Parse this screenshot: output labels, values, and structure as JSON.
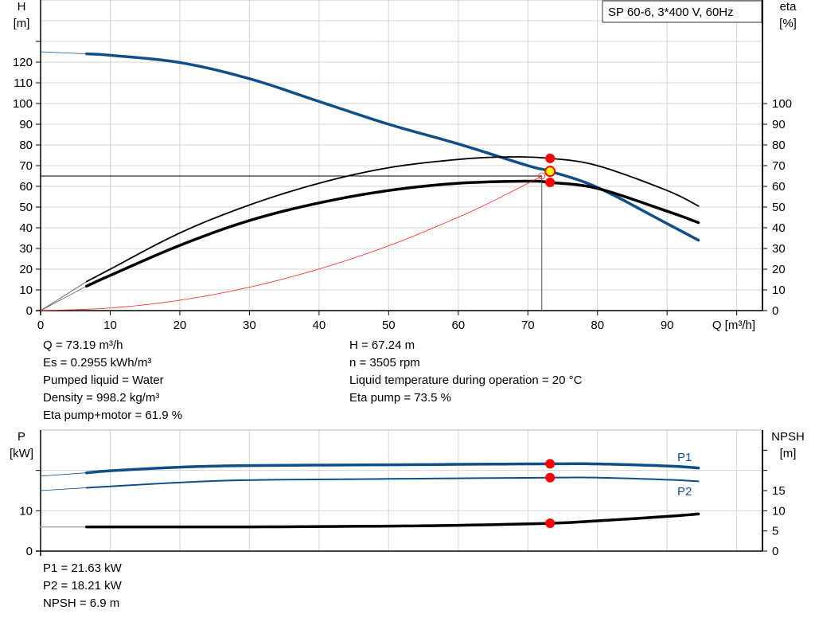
{
  "chart_data": [
    {
      "type": "line",
      "title": "SP 60-6, 3*400 V, 60Hz",
      "xlabel": "Q [m³/h]",
      "ylabel_left": [
        "H",
        "[m]"
      ],
      "ylabel_right": [
        "eta",
        "[%]"
      ],
      "xlim": [
        0,
        103.7
      ],
      "ylim": [
        0,
        150
      ],
      "grid": true,
      "x_ticks": [
        0,
        10,
        20,
        30,
        40,
        50,
        60,
        70,
        80,
        90
      ],
      "y_ticks_left": [
        0,
        10,
        20,
        30,
        40,
        50,
        60,
        70,
        80,
        90,
        100,
        110,
        120
      ],
      "y_ticks_right": [
        0,
        10,
        20,
        30,
        40,
        50,
        60,
        70,
        80,
        90,
        100
      ],
      "colors": {
        "head": "#0d4f8b",
        "eta": "#000000",
        "system": "#ff2020",
        "marker": "#ff0000",
        "duty": "#ffff00"
      },
      "series": [
        {
          "key": "head",
          "extrapolated": [
            [
              0,
              125
            ],
            [
              6.6,
              124
            ]
          ],
          "points": [
            [
              6.6,
              124
            ],
            [
              10,
              123.3
            ],
            [
              20,
              119.8
            ],
            [
              30,
              112
            ],
            [
              40,
              101
            ],
            [
              50,
              90
            ],
            [
              60,
              80.5
            ],
            [
              70,
              70
            ],
            [
              73.19,
              67.24
            ],
            [
              80,
              59.5
            ],
            [
              90,
              42
            ],
            [
              94.5,
              34
            ]
          ]
        },
        {
          "key": "eta_pump",
          "extrapolated": [
            [
              0,
              0
            ],
            [
              6.6,
              14
            ]
          ],
          "points": [
            [
              6.6,
              14
            ],
            [
              10,
              20
            ],
            [
              20,
              37.5
            ],
            [
              30,
              51
            ],
            [
              40,
              61.5
            ],
            [
              50,
              69
            ],
            [
              60,
              73
            ],
            [
              67,
              74.2
            ],
            [
              73.19,
              73.5
            ],
            [
              80,
              70
            ],
            [
              90,
              58
            ],
            [
              94.5,
              50.5
            ]
          ]
        },
        {
          "key": "eta_pump_motor",
          "extrapolated": [
            [
              0,
              0
            ],
            [
              6.6,
              11.8
            ]
          ],
          "points": [
            [
              6.6,
              11.8
            ],
            [
              10,
              17
            ],
            [
              20,
              31.5
            ],
            [
              30,
              43.5
            ],
            [
              40,
              52
            ],
            [
              50,
              58
            ],
            [
              60,
              61.5
            ],
            [
              70,
              62.5
            ],
            [
              73.19,
              61.9
            ],
            [
              80,
              59
            ],
            [
              90,
              48
            ],
            [
              94.5,
              42.5
            ]
          ]
        },
        {
          "key": "system_curve",
          "points": [
            [
              0,
              0
            ],
            [
              10,
              1.25
            ],
            [
              20,
              5.02
            ],
            [
              30,
              11.3
            ],
            [
              40,
              20.1
            ],
            [
              50,
              31.3
            ],
            [
              60,
              45.1
            ],
            [
              66,
              54.6
            ],
            [
              72,
              65
            ]
          ]
        }
      ],
      "duty_point": {
        "Q": 72,
        "H": 65
      },
      "operating_point": {
        "Q": 73.19,
        "H": 67.24,
        "eta_pump": 73.5,
        "eta_pump_motor": 61.9
      }
    },
    {
      "type": "line",
      "ylabel_left": [
        "P",
        "[kW]"
      ],
      "ylabel_right": [
        "NPSH",
        "[m]"
      ],
      "xlim": [
        0,
        103.7
      ],
      "ylim": [
        0,
        30
      ],
      "grid": true,
      "y_ticks_left": [
        0,
        10
      ],
      "y_ticks_right": [
        0,
        5,
        10,
        15
      ],
      "series": [
        {
          "name": "P1",
          "key": "p1",
          "extrapolated": [
            [
              0,
              18.6
            ],
            [
              6.6,
              19.4
            ]
          ],
          "points": [
            [
              6.6,
              19.4
            ],
            [
              10,
              19.9
            ],
            [
              20,
              20.8
            ],
            [
              30,
              21.2
            ],
            [
              50,
              21.4
            ],
            [
              73.19,
              21.63
            ],
            [
              80,
              21.6
            ],
            [
              90,
              21.1
            ],
            [
              94.5,
              20.6
            ]
          ]
        },
        {
          "name": "P2",
          "key": "p2",
          "extrapolated": [
            [
              0,
              15
            ],
            [
              6.6,
              15.7
            ]
          ],
          "points": [
            [
              6.6,
              15.7
            ],
            [
              20,
              17
            ],
            [
              30,
              17.6
            ],
            [
              50,
              17.9
            ],
            [
              73.19,
              18.21
            ],
            [
              80,
              18.2
            ],
            [
              90,
              17.7
            ],
            [
              94.5,
              17.3
            ]
          ]
        },
        {
          "key": "npsh",
          "extrapolated": [
            [
              0,
              6
            ],
            [
              6.6,
              6
            ]
          ],
          "points": [
            [
              6.6,
              6
            ],
            [
              30,
              6
            ],
            [
              50,
              6.2
            ],
            [
              60,
              6.4
            ],
            [
              73.19,
              6.9
            ],
            [
              80,
              7.5
            ],
            [
              90,
              8.6
            ],
            [
              94.5,
              9.2
            ]
          ]
        }
      ],
      "operating_point": {
        "Q": 73.19,
        "P1": 21.63,
        "P2": 18.21,
        "NPSH": 6.9
      }
    }
  ],
  "results": {
    "left": [
      "Q = 73.19 m³/h",
      "Es = 0.2955 kWh/m³",
      "Pumped liquid = Water",
      "Density = 998.2 kg/m³",
      "Eta pump+motor = 61.9 %"
    ],
    "right": [
      "H = 67.24 m",
      "n = 3505 rpm",
      "Liquid temperature during operation = 20 °C",
      "Eta pump = 73.5 %"
    ],
    "power": [
      "P1 = 21.63 kW",
      "P2 = 18.21 kW",
      "NPSH = 6.9 m"
    ]
  }
}
